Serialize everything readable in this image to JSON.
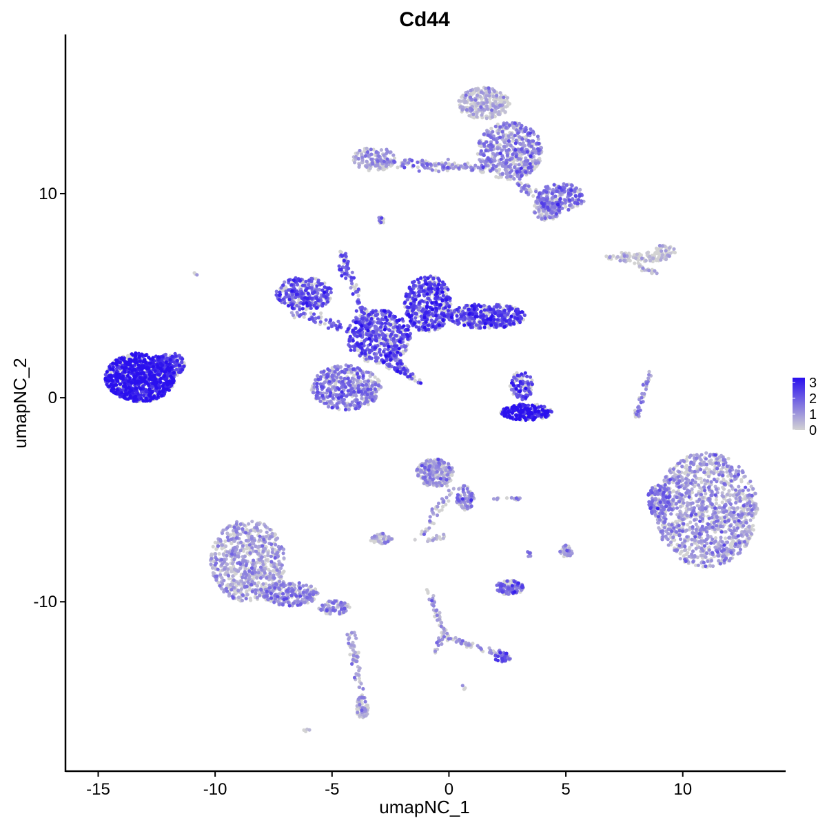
{
  "chart_data": {
    "type": "scatter",
    "title": "Cd44",
    "xlabel": "umapNC_1",
    "ylabel": "umapNC_2",
    "xlim": [
      -16.4,
      14.4
    ],
    "ylim": [
      -18.3,
      17.8
    ],
    "xticks": [
      -15,
      -10,
      -5,
      0,
      5,
      10
    ],
    "xtick_labels": [
      "-15",
      "-10",
      "-5",
      "0",
      "5",
      "10"
    ],
    "yticks": [
      10,
      0,
      -10
    ],
    "ytick_labels": [
      "10",
      "0",
      "-10"
    ],
    "grid": false,
    "legend_position": "right",
    "color_scale": {
      "low": "#d3d3d3",
      "high": "#2a10ee",
      "min": 0,
      "max": 3.3,
      "ticks": [
        3,
        2,
        1,
        0
      ],
      "tick_labels": [
        "3",
        "2",
        "1",
        "0"
      ]
    },
    "clusters": [
      {
        "cx": -13.2,
        "cy": 1.0,
        "rx": 1.5,
        "ry": 1.2,
        "n": 900,
        "expr": 3.0
      },
      {
        "cx": -11.9,
        "cy": 1.6,
        "rx": 0.6,
        "ry": 0.6,
        "n": 140,
        "expr": 2.3
      },
      {
        "cx": -6.2,
        "cy": 5.1,
        "rx": 1.2,
        "ry": 0.8,
        "n": 300,
        "expr": 2.1
      },
      {
        "cx": -4.4,
        "cy": 0.5,
        "rx": 1.5,
        "ry": 1.1,
        "n": 450,
        "expr": 1.4
      },
      {
        "cx": -3.0,
        "cy": 3.0,
        "rx": 1.4,
        "ry": 1.3,
        "n": 450,
        "expr": 2.2
      },
      {
        "cx": -0.9,
        "cy": 4.6,
        "rx": 1.0,
        "ry": 1.4,
        "n": 420,
        "expr": 2.4
      },
      {
        "cx": 1.6,
        "cy": 4.0,
        "rx": 1.7,
        "ry": 0.6,
        "n": 380,
        "expr": 2.4
      },
      {
        "cx": -4.5,
        "cy": 6.5,
        "rx": 0.2,
        "ry": 0.6,
        "n": 30,
        "expr": 2.0
      },
      {
        "cx": 3.3,
        "cy": -0.7,
        "rx": 1.1,
        "ry": 0.4,
        "n": 230,
        "expr": 3.0
      },
      {
        "cx": 3.1,
        "cy": 0.6,
        "rx": 0.5,
        "ry": 0.7,
        "n": 90,
        "expr": 2.3
      },
      {
        "cx": 1.5,
        "cy": 14.4,
        "rx": 1.1,
        "ry": 0.8,
        "n": 260,
        "expr": 0.4
      },
      {
        "cx": 2.6,
        "cy": 12.1,
        "rx": 1.4,
        "ry": 1.4,
        "n": 500,
        "expr": 1.2
      },
      {
        "cx": 4.8,
        "cy": 9.8,
        "rx": 1.0,
        "ry": 0.7,
        "n": 200,
        "expr": 1.6
      },
      {
        "cx": 4.2,
        "cy": 9.3,
        "rx": 0.6,
        "ry": 0.6,
        "n": 100,
        "expr": 1.0
      },
      {
        "cx": -3.2,
        "cy": 11.7,
        "rx": 0.9,
        "ry": 0.6,
        "n": 110,
        "expr": 1.0
      },
      {
        "cx": 8.1,
        "cy": 6.9,
        "rx": 1.4,
        "ry": 0.25,
        "n": 90,
        "expr": 0.2
      },
      {
        "cx": 9.2,
        "cy": 7.2,
        "rx": 0.5,
        "ry": 0.3,
        "n": 40,
        "expr": 0.2
      },
      {
        "cx": 11.0,
        "cy": -5.5,
        "rx": 2.2,
        "ry": 2.8,
        "n": 1200,
        "expr": 0.9
      },
      {
        "cx": 9.0,
        "cy": -5.0,
        "rx": 0.5,
        "ry": 0.9,
        "n": 110,
        "expr": 1.6
      },
      {
        "cx": -8.6,
        "cy": -8.0,
        "rx": 1.6,
        "ry": 2.0,
        "n": 700,
        "expr": 0.8
      },
      {
        "cx": -6.8,
        "cy": -9.6,
        "rx": 1.2,
        "ry": 0.6,
        "n": 220,
        "expr": 1.2
      },
      {
        "cx": -4.9,
        "cy": -10.3,
        "rx": 0.7,
        "ry": 0.35,
        "n": 70,
        "expr": 1.2
      },
      {
        "cx": -3.7,
        "cy": -15.2,
        "rx": 0.25,
        "ry": 0.6,
        "n": 60,
        "expr": 0.6
      },
      {
        "cx": -0.6,
        "cy": -3.7,
        "rx": 0.8,
        "ry": 0.7,
        "n": 220,
        "expr": 0.9
      },
      {
        "cx": 0.7,
        "cy": -4.9,
        "rx": 0.4,
        "ry": 0.6,
        "n": 70,
        "expr": 1.3
      },
      {
        "cx": -2.9,
        "cy": -6.9,
        "rx": 0.5,
        "ry": 0.25,
        "n": 50,
        "expr": 0.7
      },
      {
        "cx": 2.6,
        "cy": -9.3,
        "rx": 0.6,
        "ry": 0.35,
        "n": 110,
        "expr": 1.6
      },
      {
        "cx": 2.3,
        "cy": -12.7,
        "rx": 0.35,
        "ry": 0.25,
        "n": 35,
        "expr": 2.1
      },
      {
        "cx": 5.0,
        "cy": -7.5,
        "rx": 0.3,
        "ry": 0.3,
        "n": 30,
        "expr": 1.0
      },
      {
        "cx": -2.9,
        "cy": 8.7,
        "rx": 0.15,
        "ry": 0.2,
        "n": 10,
        "expr": 1.8
      },
      {
        "cx": -0.4,
        "cy": -6.8,
        "rx": 0.2,
        "ry": 0.2,
        "n": 8,
        "expr": 0.4
      },
      {
        "cx": -10.8,
        "cy": 6.1,
        "rx": 0.1,
        "ry": 0.1,
        "n": 3,
        "expr": 1.2
      },
      {
        "cx": -6.1,
        "cy": -16.3,
        "rx": 0.15,
        "ry": 0.1,
        "n": 4,
        "expr": 1.0
      },
      {
        "cx": 0.6,
        "cy": -14.2,
        "rx": 0.1,
        "ry": 0.1,
        "n": 3,
        "expr": 1.2
      }
    ],
    "strands": [
      {
        "from": [
          -3.2,
          11.6
        ],
        "to": [
          1.6,
          11.2
        ],
        "n": 140,
        "width": 0.25,
        "expr": 1.2
      },
      {
        "from": [
          3.0,
          10.6
        ],
        "to": [
          4.6,
          9.0
        ],
        "n": 50,
        "width": 0.25,
        "expr": 1.2
      },
      {
        "from": [
          -4.6,
          7.3
        ],
        "to": [
          -3.3,
          3.0
        ],
        "n": 70,
        "width": 0.2,
        "expr": 2.0
      },
      {
        "from": [
          -2.6,
          2.2
        ],
        "to": [
          -1.3,
          0.8
        ],
        "n": 40,
        "width": 0.15,
        "expr": 2.0
      },
      {
        "from": [
          -2.9,
          1.8
        ],
        "to": [
          -1.2,
          0.7
        ],
        "n": 40,
        "width": 0.12,
        "expr": 2.3
      },
      {
        "from": [
          -6.8,
          4.2
        ],
        "to": [
          -4.6,
          3.5
        ],
        "n": 50,
        "width": 0.25,
        "expr": 1.8
      },
      {
        "from": [
          7.9,
          6.6
        ],
        "to": [
          8.9,
          6.1
        ],
        "n": 20,
        "width": 0.15,
        "expr": 0.2
      },
      {
        "from": [
          8.6,
          1.2
        ],
        "to": [
          8.0,
          -1.0
        ],
        "n": 40,
        "width": 0.15,
        "expr": 1.0
      },
      {
        "from": [
          0.1,
          -4.5
        ],
        "to": [
          -1.3,
          -6.9
        ],
        "n": 40,
        "width": 0.2,
        "expr": 0.8
      },
      {
        "from": [
          -0.9,
          -9.4
        ],
        "to": [
          -0.2,
          -11.5
        ],
        "n": 40,
        "width": 0.15,
        "expr": 0.8
      },
      {
        "from": [
          -0.2,
          -11.7
        ],
        "to": [
          2.3,
          -12.6
        ],
        "n": 50,
        "width": 0.15,
        "expr": 1.0
      },
      {
        "from": [
          -0.3,
          -11.6
        ],
        "to": [
          -0.6,
          -12.5
        ],
        "n": 15,
        "width": 0.12,
        "expr": 1.0
      },
      {
        "from": [
          -4.2,
          -11.5
        ],
        "to": [
          -3.7,
          -14.9
        ],
        "n": 60,
        "width": 0.2,
        "expr": 0.8
      },
      {
        "from": [
          2.0,
          -5.0
        ],
        "to": [
          3.1,
          -4.9
        ],
        "n": 14,
        "width": 0.1,
        "expr": 0.8
      },
      {
        "from": [
          3.4,
          -7.5
        ],
        "to": [
          3.5,
          -7.9
        ],
        "n": 8,
        "width": 0.1,
        "expr": 1.2
      },
      {
        "from": [
          -1.0,
          -7.0
        ],
        "to": [
          -0.5,
          -6.9
        ],
        "n": 8,
        "width": 0.1,
        "expr": 0.6
      }
    ]
  }
}
